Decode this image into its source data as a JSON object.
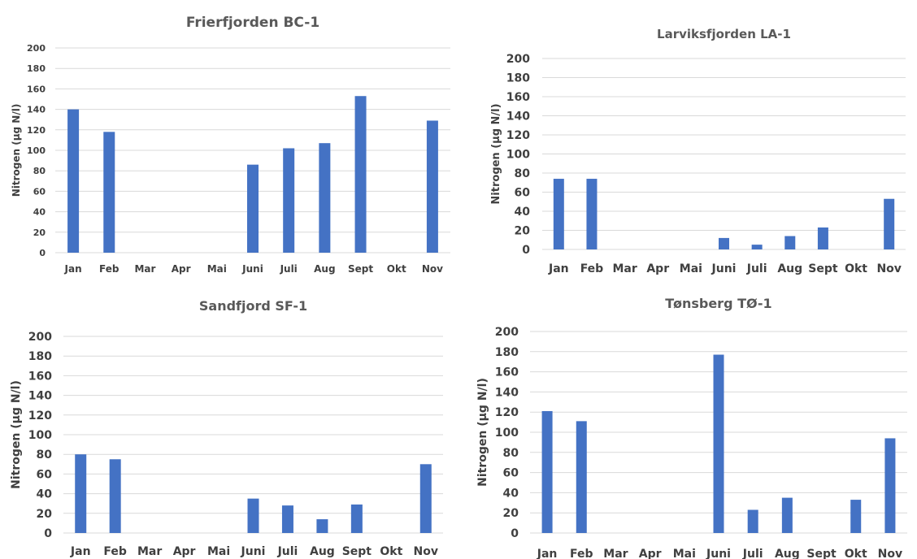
{
  "chart_data": [
    {
      "type": "bar",
      "title": "Frierfjorden BC-1",
      "ylabel": "Nitrogen (µg N/l)",
      "categories": [
        "Jan",
        "Feb",
        "Mar",
        "Apr",
        "Mai",
        "Juni",
        "Juli",
        "Aug",
        "Sept",
        "Okt",
        "Nov"
      ],
      "values": [
        140,
        118,
        null,
        null,
        null,
        86,
        102,
        107,
        153,
        null,
        129
      ],
      "ylim": [
        0,
        200
      ],
      "yticks": [
        "0",
        "20",
        "40",
        "60",
        "80",
        "100",
        "120",
        "140",
        "160",
        "180",
        "200"
      ],
      "grid": true,
      "color": "#4472c4"
    },
    {
      "type": "bar",
      "title": "Larviksfjorden LA-1",
      "ylabel": "Nitrogen (µg N/l)",
      "categories": [
        "Jan",
        "Feb",
        "Mar",
        "Apr",
        "Mai",
        "Juni",
        "Juli",
        "Aug",
        "Sept",
        "Okt",
        "Nov"
      ],
      "values": [
        74,
        74,
        null,
        null,
        null,
        12,
        5,
        14,
        23,
        null,
        53
      ],
      "ylim": [
        0,
        200
      ],
      "yticks": [
        "0",
        "20",
        "40",
        "60",
        "80",
        "100",
        "120",
        "140",
        "160",
        "180",
        "200"
      ],
      "grid": true,
      "color": "#4472c4"
    },
    {
      "type": "bar",
      "title": "Sandfjord SF-1",
      "ylabel": "Nitrogen (µg N/l)",
      "categories": [
        "Jan",
        "Feb",
        "Mar",
        "Apr",
        "Mai",
        "Juni",
        "Juli",
        "Aug",
        "Sept",
        "Okt",
        "Nov"
      ],
      "values": [
        80,
        75,
        null,
        null,
        null,
        35,
        28,
        14,
        29,
        null,
        70
      ],
      "ylim": [
        0,
        200
      ],
      "yticks": [
        "0",
        "20",
        "40",
        "60",
        "80",
        "100",
        "120",
        "140",
        "160",
        "180",
        "200"
      ],
      "grid": true,
      "color": "#4472c4"
    },
    {
      "type": "bar",
      "title": "Tønsberg TØ-1",
      "ylabel": "Nitrogen (µg N/l)",
      "categories": [
        "Jan",
        "Feb",
        "Mar",
        "Apr",
        "Mai",
        "Juni",
        "Juli",
        "Aug",
        "Sept",
        "Okt",
        "Nov"
      ],
      "values": [
        121,
        111,
        null,
        null,
        null,
        177,
        23,
        35,
        null,
        33,
        94
      ],
      "ylim": [
        0,
        200
      ],
      "yticks": [
        "0",
        "20",
        "40",
        "60",
        "80",
        "100",
        "120",
        "140",
        "160",
        "180",
        "200"
      ],
      "grid": true,
      "color": "#4472c4"
    }
  ]
}
